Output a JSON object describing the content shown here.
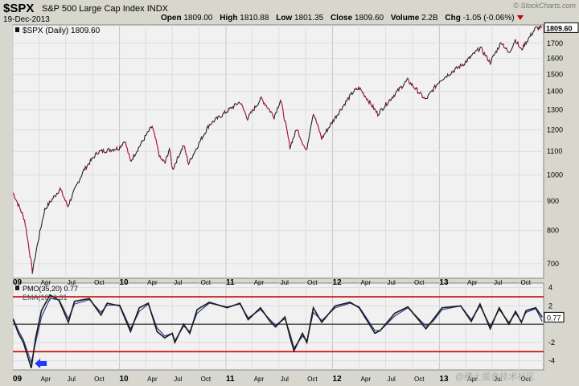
{
  "header": {
    "symbol": "$SPX",
    "name": "S&P 500 Large Cap Index",
    "exchange": "INDX",
    "date": "19-Dec-2013",
    "brand": "© StockCharts.com",
    "open_label": "Open",
    "open": "1809.00",
    "high_label": "High",
    "high": "1810.88",
    "low_label": "Low",
    "low": "1801.35",
    "close_label": "Close",
    "close": "1809.60",
    "volume_label": "Volume",
    "volume": "2.2B",
    "chg_label": "Chg",
    "chg": "-1.05 (-0.06%)",
    "watermark": "@稀土掘金技术社区"
  },
  "colors": {
    "price_line": "#111111",
    "price_down": "#c0143c",
    "pmo_line": "#1a1a1a",
    "ema_line": "#2c3e8c",
    "bands": "#cc0000",
    "arrow": "#1e3cff",
    "panel_bg": "#f1f1f1"
  },
  "chart_data": [
    {
      "type": "line",
      "title": "$SPX (Daily) 1809.60",
      "ylim": [
        660,
        1830
      ],
      "yscale": "log",
      "yticks": [
        700,
        800,
        900,
        1000,
        1100,
        1200,
        1300,
        1400,
        1500,
        1600,
        1700
      ],
      "last_value_label": "1809.60",
      "xticks": [
        "09",
        "Apr",
        "Jul",
        "Oct",
        "10",
        "Apr",
        "Jul",
        "Oct",
        "11",
        "Apr",
        "Jul",
        "Oct",
        "12",
        "Apr",
        "Jul",
        "Oct",
        "13",
        "Apr",
        "Jul",
        "Oct"
      ],
      "series": [
        {
          "name": "$SPX (Daily)",
          "x": [
            "2009-01-02",
            "2009-02-10",
            "2009-03-09",
            "2009-04-20",
            "2009-06-12",
            "2009-07-08",
            "2009-09-01",
            "2009-10-19",
            "2009-12-31",
            "2010-01-19",
            "2010-02-08",
            "2010-04-23",
            "2010-05-20",
            "2010-06-07",
            "2010-06-21",
            "2010-07-02",
            "2010-08-09",
            "2010-08-26",
            "2010-11-05",
            "2011-02-18",
            "2011-03-16",
            "2011-05-02",
            "2011-06-15",
            "2011-07-07",
            "2011-08-08",
            "2011-09-01",
            "2011-10-03",
            "2011-10-27",
            "2011-11-25",
            "2012-03-14",
            "2012-04-02",
            "2012-06-04",
            "2012-09-14",
            "2012-11-15",
            "2013-01-02",
            "2013-03-28",
            "2013-05-21",
            "2013-06-24",
            "2013-08-02",
            "2013-08-27",
            "2013-09-18",
            "2013-10-08",
            "2013-11-27",
            "2013-12-19"
          ],
          "values": [
            931,
            835,
            677,
            870,
            946,
            881,
            1020,
            1097,
            1115,
            1150,
            1056,
            1217,
            1071,
            1050,
            1113,
            1022,
            1128,
            1047,
            1225,
            1343,
            1256,
            1361,
            1265,
            1353,
            1119,
            1204,
            1099,
            1285,
            1158,
            1402,
            1419,
            1278,
            1465,
            1353,
            1462,
            1569,
            1669,
            1573,
            1709,
            1630,
            1725,
            1655,
            1807,
            1810
          ]
        }
      ]
    },
    {
      "type": "line",
      "title": "PMO(35,20) 0.77",
      "ylim": [
        -5,
        4.5
      ],
      "yticks": [
        -4,
        -2,
        2,
        4
      ],
      "zero_line": 0,
      "bands": [
        3,
        -3
      ],
      "last_value_label": "0.77",
      "series": [
        {
          "name": "PMO(35,20)",
          "x": [
            "2009-01-02",
            "2009-01-20",
            "2009-02-06",
            "2009-03-05",
            "2009-03-20",
            "2009-04-09",
            "2009-05-08",
            "2009-06-08",
            "2009-07-10",
            "2009-07-31",
            "2009-09-20",
            "2009-10-30",
            "2009-11-20",
            "2010-01-02",
            "2010-02-08",
            "2010-03-10",
            "2010-04-10",
            "2010-05-10",
            "2010-06-05",
            "2010-07-01",
            "2010-07-10",
            "2010-08-09",
            "2010-08-30",
            "2010-09-24",
            "2010-11-05",
            "2011-01-05",
            "2011-02-18",
            "2011-03-18",
            "2011-04-29",
            "2011-06-01",
            "2011-06-20",
            "2011-07-22",
            "2011-08-10",
            "2011-08-22",
            "2011-09-20",
            "2011-10-05",
            "2011-10-27",
            "2011-11-25",
            "2012-01-10",
            "2012-03-01",
            "2012-04-01",
            "2012-05-25",
            "2012-06-12",
            "2012-08-01",
            "2012-09-15",
            "2012-11-16",
            "2012-12-10",
            "2013-01-10",
            "2013-03-15",
            "2013-04-20",
            "2013-05-20",
            "2013-06-24",
            "2013-07-25",
            "2013-08-27",
            "2013-09-19",
            "2013-10-09",
            "2013-10-25",
            "2013-11-27",
            "2013-12-19"
          ],
          "values": [
            0.5,
            -1.0,
            -2.0,
            -4.8,
            -1.5,
            1.5,
            3.2,
            2.6,
            0.2,
            2.5,
            2.8,
            1.0,
            2.3,
            2.0,
            -0.8,
            1.8,
            2.3,
            -0.8,
            -1.5,
            -1.0,
            -2.0,
            0.0,
            -1.0,
            1.6,
            2.4,
            1.8,
            2.3,
            0.5,
            1.8,
            0.3,
            -0.3,
            0.8,
            -1.6,
            -2.9,
            -1.0,
            -2.0,
            1.8,
            0.2,
            2.0,
            2.4,
            1.8,
            -1.0,
            -0.7,
            1.2,
            1.9,
            -0.5,
            0.5,
            1.8,
            2.0,
            0.3,
            2.2,
            -0.5,
            1.8,
            0.0,
            1.4,
            0.2,
            1.5,
            1.8,
            0.77
          ]
        },
        {
          "name": "EMA(10) 0.31",
          "x": [
            "2009-01-02",
            "2009-01-20",
            "2009-02-06",
            "2009-03-05",
            "2009-03-20",
            "2009-04-09",
            "2009-05-08",
            "2009-06-08",
            "2009-07-10",
            "2009-07-31",
            "2009-09-20",
            "2009-10-30",
            "2009-11-20",
            "2010-01-02",
            "2010-02-08",
            "2010-03-10",
            "2010-04-10",
            "2010-05-10",
            "2010-06-05",
            "2010-07-01",
            "2010-07-10",
            "2010-08-09",
            "2010-08-30",
            "2010-09-24",
            "2010-11-05",
            "2011-01-05",
            "2011-02-18",
            "2011-03-18",
            "2011-04-29",
            "2011-06-01",
            "2011-06-20",
            "2011-07-22",
            "2011-08-10",
            "2011-08-22",
            "2011-09-20",
            "2011-10-05",
            "2011-10-27",
            "2011-11-25",
            "2012-01-10",
            "2012-03-01",
            "2012-04-01",
            "2012-05-25",
            "2012-06-12",
            "2012-08-01",
            "2012-09-15",
            "2012-11-16",
            "2012-12-10",
            "2013-01-10",
            "2013-03-15",
            "2013-04-20",
            "2013-05-20",
            "2013-06-24",
            "2013-07-25",
            "2013-08-27",
            "2013-09-19",
            "2013-10-09",
            "2013-10-25",
            "2013-11-27",
            "2013-12-19"
          ],
          "values": [
            0.6,
            -0.7,
            -1.7,
            -4.2,
            -2.0,
            0.8,
            2.8,
            2.7,
            0.6,
            2.2,
            2.7,
            1.3,
            2.1,
            2.1,
            -0.5,
            1.4,
            2.2,
            -0.4,
            -1.3,
            -1.0,
            -1.8,
            -0.2,
            -0.8,
            1.2,
            2.3,
            1.9,
            2.2,
            0.7,
            1.6,
            0.5,
            -0.1,
            0.6,
            -1.2,
            -2.6,
            -1.3,
            -1.8,
            1.3,
            0.4,
            1.8,
            2.3,
            1.9,
            -0.7,
            -0.7,
            0.9,
            1.8,
            -0.2,
            0.3,
            1.6,
            2.0,
            0.5,
            2.0,
            -0.2,
            1.6,
            0.2,
            1.2,
            0.3,
            1.3,
            1.7,
            0.31
          ]
        }
      ]
    }
  ]
}
